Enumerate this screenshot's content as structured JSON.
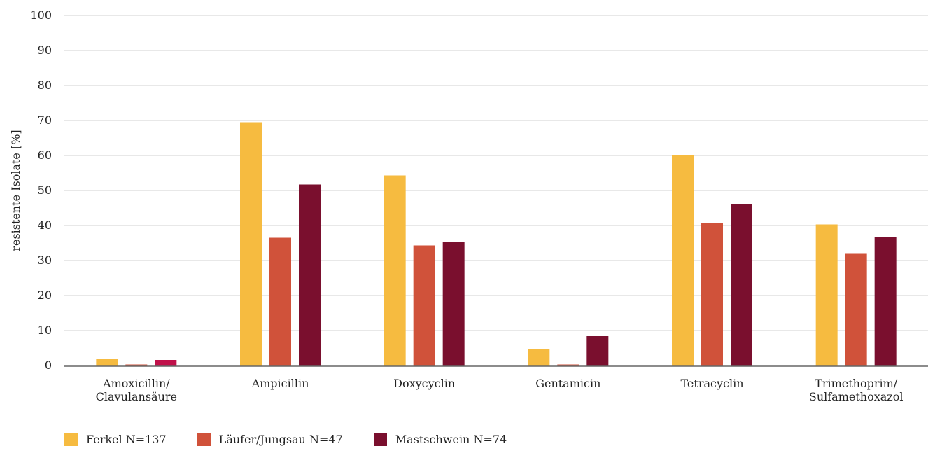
{
  "chart_data": {
    "type": "bar",
    "title": "",
    "xlabel": "",
    "ylabel": "resistente Isolate [%]",
    "ylim": [
      0,
      100
    ],
    "yticks": [
      0,
      10,
      20,
      30,
      40,
      50,
      60,
      70,
      80,
      90,
      100
    ],
    "grid": true,
    "legend_position": "bottom-left",
    "categories": [
      [
        "Amoxicillin/",
        "Clavulansäure"
      ],
      [
        "Ampicillin"
      ],
      [
        "Doxycyclin"
      ],
      [
        "Gentamicin"
      ],
      [
        "Tetracyclin"
      ],
      [
        "Trimethoprim/",
        "Sulfamethoxazol"
      ]
    ],
    "series": [
      {
        "name": "Ferkel N=137",
        "color": "#f6bb40",
        "values": [
          1.8,
          69.5,
          54.3,
          4.6,
          60.1,
          40.3
        ]
      },
      {
        "name": "Läufer/Jungsau N=47",
        "color": "#d0523a",
        "values": [
          0.3,
          36.5,
          34.3,
          0.3,
          40.6,
          32.1
        ]
      },
      {
        "name": "Mastschwein N=74",
        "color": "#7a0f2e",
        "values": [
          1.6,
          51.7,
          35.2,
          8.4,
          46.1,
          36.6
        ]
      }
    ],
    "point_colors": {
      "0-2": "#c0114a"
    }
  }
}
